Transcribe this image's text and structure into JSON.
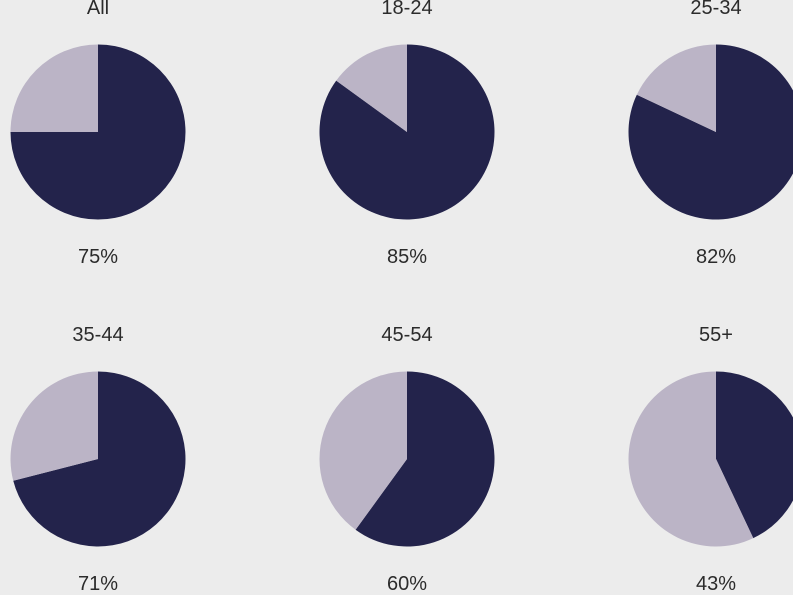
{
  "chart_data": [
    {
      "type": "pie",
      "title": "All",
      "slices": [
        {
          "value": 75,
          "color": "#23234b"
        },
        {
          "value": 25,
          "color": "#bbb4c6"
        }
      ],
      "value_label": "75%"
    },
    {
      "type": "pie",
      "title": "18-24",
      "slices": [
        {
          "value": 85,
          "color": "#23234b"
        },
        {
          "value": 15,
          "color": "#bbb4c6"
        }
      ],
      "value_label": "85%"
    },
    {
      "type": "pie",
      "title": "25-34",
      "slices": [
        {
          "value": 82,
          "color": "#23234b"
        },
        {
          "value": 18,
          "color": "#bbb4c6"
        }
      ],
      "value_label": "82%"
    },
    {
      "type": "pie",
      "title": "35-44",
      "slices": [
        {
          "value": 71,
          "color": "#23234b"
        },
        {
          "value": 29,
          "color": "#bbb4c6"
        }
      ],
      "value_label": "71%"
    },
    {
      "type": "pie",
      "title": "45-54",
      "slices": [
        {
          "value": 60,
          "color": "#23234b"
        },
        {
          "value": 40,
          "color": "#bbb4c6"
        }
      ],
      "value_label": "60%"
    },
    {
      "type": "pie",
      "title": "55+",
      "slices": [
        {
          "value": 43,
          "color": "#23234b"
        },
        {
          "value": 57,
          "color": "#bbb4c6"
        }
      ],
      "value_label": "43%"
    }
  ],
  "colors": {
    "background": "#ececec",
    "primary_slice": "#23234b",
    "secondary_slice": "#bbb4c6",
    "text": "#2b2b2b"
  }
}
